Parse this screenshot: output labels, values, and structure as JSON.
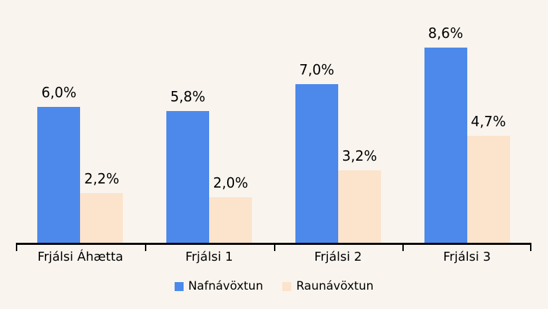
{
  "chart_data": {
    "type": "bar",
    "title": "",
    "xlabel": "",
    "ylabel": "",
    "categories": [
      "Frjálsi Áhætta",
      "Frjálsi 1",
      "Frjálsi 2",
      "Frjálsi 3"
    ],
    "series": [
      {
        "name": "Nafnávöxtun",
        "values": [
          6.0,
          5.8,
          7.0,
          8.6
        ],
        "labels": [
          "6,0%",
          "5,8%",
          "7,0%",
          "8,6%"
        ],
        "color": "#4C89EA"
      },
      {
        "name": "Raunávöxtun",
        "values": [
          2.2,
          2.0,
          3.2,
          4.7
        ],
        "labels": [
          "2,2%",
          "2,0%",
          "3,2%",
          "4,7%"
        ],
        "color": "#FCE3CC"
      }
    ],
    "ylim": [
      0,
      10.7
    ],
    "grid": false,
    "legend_position": "bottom",
    "decimal_separator": ","
  },
  "colors": {
    "background": "#F9F4EE",
    "axis": "#000000",
    "text": "#000000"
  }
}
